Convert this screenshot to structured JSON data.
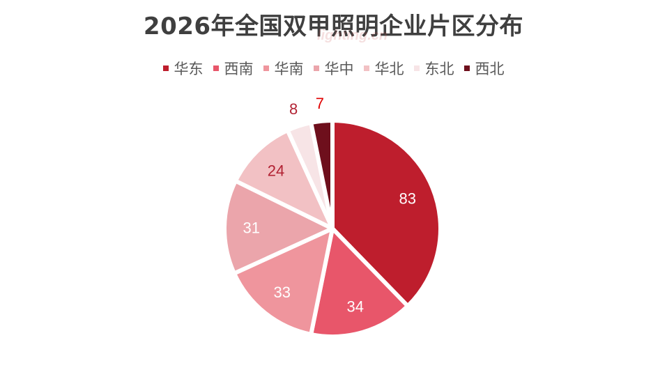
{
  "watermark": "lighting.cn",
  "chart_data": {
    "type": "pie",
    "title": "2026年全国双甲照明企业片区分布",
    "legend_position": "top",
    "categories": [
      "华东",
      "西南",
      "华南",
      "华中",
      "华北",
      "东北",
      "西北"
    ],
    "values": [
      83,
      34,
      33,
      31,
      24,
      8,
      7
    ],
    "colors": [
      "#be1e2d",
      "#e8566a",
      "#ef959d",
      "#eba5ab",
      "#f2c1c4",
      "#f7e4e6",
      "#6e0f1c"
    ],
    "label_colors": [
      "#ffffff",
      "#ffffff",
      "#ffffff",
      "#ffffff",
      "#b22233",
      "#b22233",
      "#e00000"
    ],
    "start_angle": "top",
    "direction": "clockwise"
  }
}
